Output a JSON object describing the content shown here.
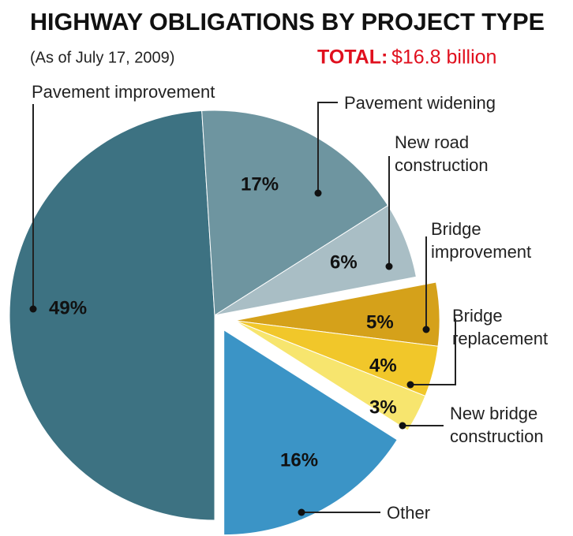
{
  "chart_data": {
    "type": "pie",
    "title": "HIGHWAY OBLIGATIONS BY PROJECT TYPE",
    "subtitle": "(As of July 17, 2009)",
    "total_label": "TOTAL:",
    "total_value": "$16.8 billion",
    "categories": [
      "Pavement improvement",
      "Pavement widening",
      "New road construction",
      "Bridge improvement",
      "Bridge replacement",
      "New bridge construction",
      "Other"
    ],
    "values": [
      49,
      17,
      6,
      5,
      4,
      3,
      16
    ],
    "value_labels": [
      "49%",
      "17%",
      "6%",
      "5%",
      "4%",
      "3%",
      "16%"
    ],
    "colors": [
      "#3d7282",
      "#6e95a0",
      "#a9bec5",
      "#d5a11a",
      "#f1c72a",
      "#f7e56e",
      "#3b94c6"
    ]
  }
}
